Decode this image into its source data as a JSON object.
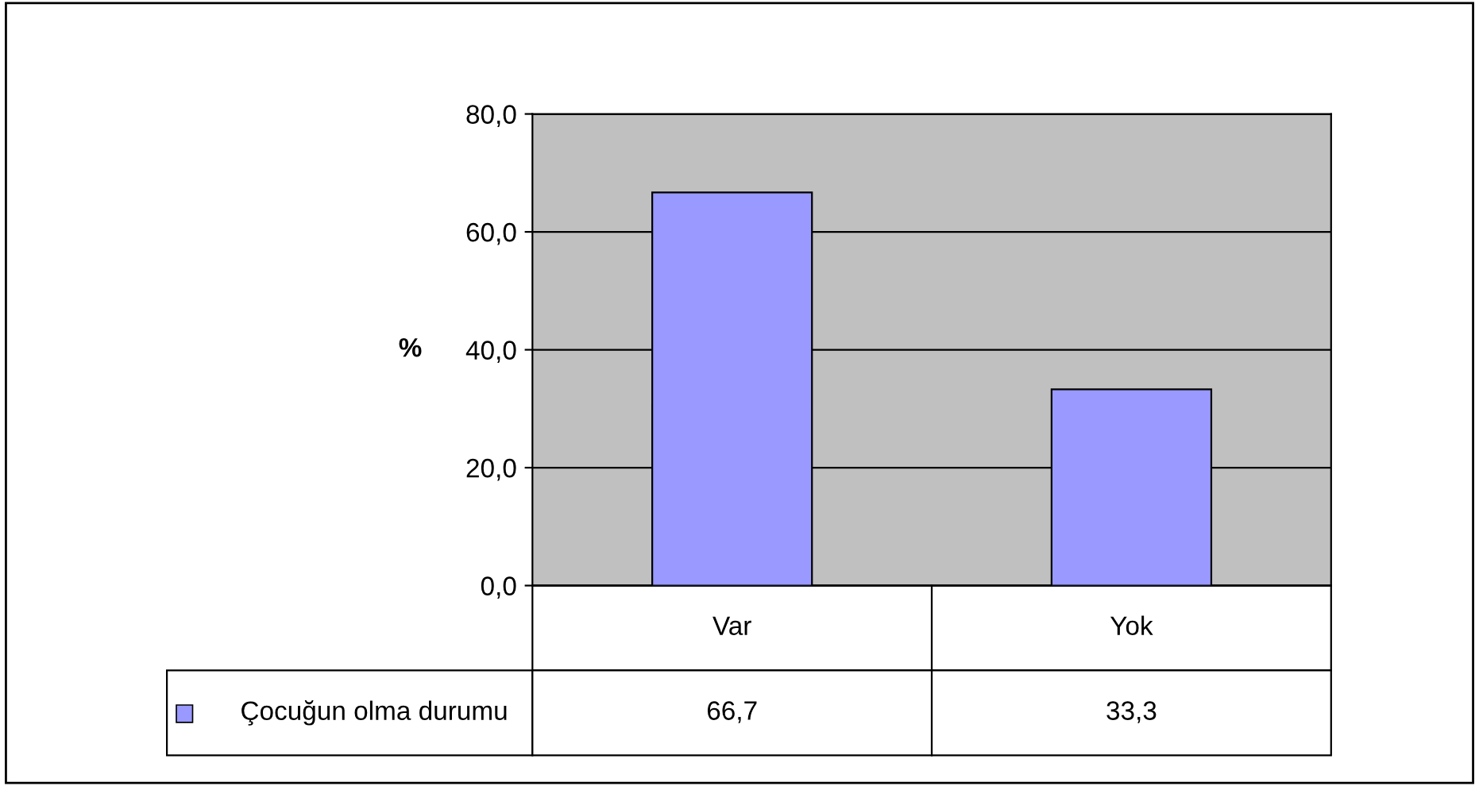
{
  "chart_data": {
    "type": "bar",
    "ylabel": "%",
    "categories": [
      "Var",
      "Yok"
    ],
    "series": [
      {
        "name": "Çocuğun olma durumu",
        "color": "#9999ff",
        "values": [
          66.7,
          33.3
        ],
        "value_labels": [
          "66,7",
          "33,3"
        ]
      }
    ],
    "ylim": [
      0,
      80
    ],
    "yticks": [
      {
        "value": 0,
        "label": "0,0"
      },
      {
        "value": 20,
        "label": "20,0"
      },
      {
        "value": 40,
        "label": "40,0"
      },
      {
        "value": 60,
        "label": "60,0"
      },
      {
        "value": 80,
        "label": "80,0"
      }
    ],
    "grid": "y",
    "legend": "bottom"
  }
}
